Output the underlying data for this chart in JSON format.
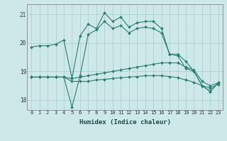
{
  "title": "",
  "xlabel": "Humidex (Indice chaleur)",
  "ylabel": "",
  "background_color": "#cce8e8",
  "grid_color": "#aacccc",
  "line_color": "#2d7d72",
  "xlim": [
    -0.5,
    23.5
  ],
  "ylim": [
    17.65,
    21.35
  ],
  "yticks": [
    18,
    19,
    20,
    21
  ],
  "xticks": [
    0,
    1,
    2,
    3,
    4,
    5,
    6,
    7,
    8,
    9,
    10,
    11,
    12,
    13,
    14,
    15,
    16,
    17,
    18,
    19,
    20,
    21,
    22,
    23
  ],
  "series": [
    [
      19.85,
      19.9,
      19.9,
      19.95,
      20.1,
      18.75,
      20.25,
      20.65,
      20.5,
      21.05,
      20.75,
      20.9,
      20.55,
      20.7,
      20.75,
      20.75,
      20.5,
      19.6,
      19.6,
      19.35,
      19.0,
      18.5,
      18.3,
      18.6
    ],
    [
      18.8,
      18.8,
      18.8,
      18.8,
      18.8,
      17.75,
      18.85,
      20.3,
      20.45,
      20.75,
      20.5,
      20.6,
      20.35,
      20.5,
      20.55,
      20.5,
      20.35,
      19.6,
      19.55,
      19.1,
      19.0,
      18.5,
      18.3,
      18.6
    ],
    [
      18.8,
      18.8,
      18.8,
      18.8,
      18.8,
      18.75,
      18.8,
      18.85,
      18.9,
      18.95,
      19.0,
      19.05,
      19.1,
      19.15,
      19.2,
      19.25,
      19.3,
      19.3,
      19.3,
      19.15,
      19.05,
      18.65,
      18.5,
      18.6
    ],
    [
      18.8,
      18.8,
      18.8,
      18.8,
      18.8,
      18.65,
      18.65,
      18.65,
      18.7,
      18.72,
      18.75,
      18.78,
      18.8,
      18.82,
      18.85,
      18.85,
      18.85,
      18.82,
      18.78,
      18.7,
      18.62,
      18.5,
      18.42,
      18.55
    ]
  ]
}
